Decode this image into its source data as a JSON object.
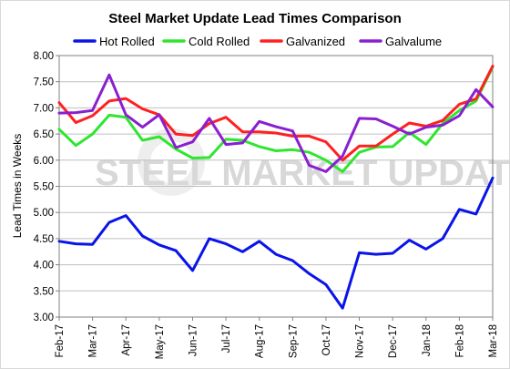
{
  "chart_data": {
    "type": "line",
    "title": "Steel Market Update Lead Times Comparison",
    "ylabel": "Lead Times in Weeks",
    "xlabel": "",
    "ylim": [
      3.0,
      8.0
    ],
    "y_ticks": [
      "3.00",
      "3.50",
      "4.00",
      "4.50",
      "5.00",
      "5.50",
      "6.00",
      "6.50",
      "7.00",
      "7.50",
      "8.00"
    ],
    "x_ticks": [
      "Feb-17",
      "Mar-17",
      "Apr-17",
      "May-17",
      "Jun-17",
      "Jul-17",
      "Aug-17",
      "Sep-17",
      "Oct-17",
      "Nov-17",
      "Dec-17",
      "Jan-18",
      "Feb-18",
      "Mar-18"
    ],
    "grid": true,
    "legend_position": "top",
    "watermark": "STEEL MARKET UPDATE",
    "series": [
      {
        "name": "Hot Rolled",
        "color": "#0a14e8",
        "values": [
          4.45,
          4.4,
          4.39,
          4.81,
          4.94,
          4.55,
          4.38,
          4.27,
          3.89,
          4.5,
          4.4,
          4.25,
          4.45,
          4.2,
          4.08,
          3.83,
          3.62,
          3.17,
          4.23,
          4.2,
          4.22,
          4.47,
          4.3,
          4.5,
          5.06,
          4.97,
          5.66
        ]
      },
      {
        "name": "Cold Rolled",
        "color": "#2ee62e",
        "values": [
          6.59,
          6.28,
          6.5,
          6.86,
          6.82,
          6.38,
          6.45,
          6.21,
          6.04,
          6.05,
          6.4,
          6.38,
          6.26,
          6.18,
          6.2,
          6.15,
          6.0,
          5.78,
          6.15,
          6.25,
          6.26,
          6.53,
          6.3,
          6.7,
          6.95,
          7.13,
          7.78
        ]
      },
      {
        "name": "Galvanized",
        "color": "#ff2020",
        "values": [
          7.1,
          6.72,
          6.85,
          7.13,
          7.18,
          6.98,
          6.87,
          6.5,
          6.47,
          6.7,
          6.82,
          6.54,
          6.54,
          6.52,
          6.46,
          6.46,
          6.35,
          6.0,
          6.27,
          6.27,
          6.5,
          6.71,
          6.65,
          6.76,
          7.07,
          7.17,
          7.8
        ]
      },
      {
        "name": "Galvalume",
        "color": "#8a1fd0",
        "values": [
          6.9,
          6.91,
          6.95,
          7.63,
          6.87,
          6.63,
          6.87,
          6.24,
          6.35,
          6.8,
          6.3,
          6.33,
          6.74,
          6.64,
          6.56,
          5.9,
          5.78,
          6.08,
          6.8,
          6.79,
          6.65,
          6.5,
          6.63,
          6.67,
          6.85,
          7.35,
          7.02
        ]
      }
    ]
  }
}
